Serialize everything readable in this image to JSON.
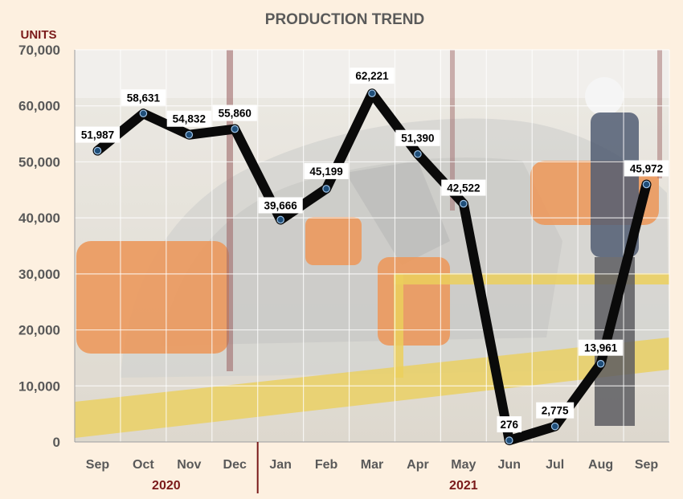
{
  "chart_data": {
    "type": "line",
    "title": "PRODUCTION TREND",
    "ylabel": "UNITS",
    "ylim": [
      0,
      70000
    ],
    "yticks": [
      0,
      10000,
      20000,
      30000,
      40000,
      50000,
      60000,
      70000
    ],
    "ytick_labels": [
      "0",
      "10,000",
      "20,000",
      "30,000",
      "40,000",
      "50,000",
      "60,000",
      "70,000"
    ],
    "categories": [
      "Sep",
      "Oct",
      "Nov",
      "Dec",
      "Jan",
      "Feb",
      "Mar",
      "Apr",
      "May",
      "Jun",
      "Jul",
      "Aug",
      "Sep"
    ],
    "groups": [
      {
        "label": "2020",
        "count": 4
      },
      {
        "label": "2021",
        "count": 9
      }
    ],
    "values": [
      51987,
      58631,
      54832,
      55860,
      39666,
      45199,
      62221,
      51390,
      42522,
      276,
      2775,
      13961,
      45972
    ],
    "data_labels": [
      "51,987",
      "58,631",
      "54,832",
      "55,860",
      "39,666",
      "45,199",
      "62,221",
      "51,390",
      "42,522",
      "276",
      "2,775",
      "13,961",
      "45,972"
    ],
    "grid": true,
    "line_color": "#0a0a0a",
    "marker_color": "#1f4e79",
    "background_image": "factory-assembly-line-photo",
    "colors": {
      "background": "#fdf0e0",
      "title": "#5a5a5a",
      "axis_text": "#595959",
      "year_text": "#7a1a1a",
      "divider": "#7a1a1a"
    }
  }
}
